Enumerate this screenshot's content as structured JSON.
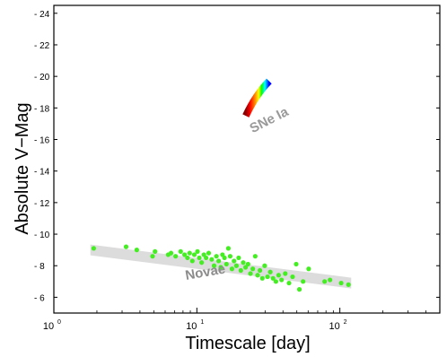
{
  "chart_data": {
    "type": "scatter",
    "title": "",
    "xlabel": "Timescale [day]",
    "ylabel": "Absolute V−Mag",
    "x_scale": "log",
    "xlim": [
      1,
      500
    ],
    "ylim": [
      5,
      24.5
    ],
    "x_ticks": [
      {
        "value": 1,
        "base": "10",
        "exp": "0"
      },
      {
        "value": 10,
        "base": "10",
        "exp": "1"
      },
      {
        "value": 100,
        "base": "10",
        "exp": "2"
      }
    ],
    "y_ticks": [
      {
        "value": 6,
        "label": "- 6"
      },
      {
        "value": 8,
        "label": "- 8"
      },
      {
        "value": 10,
        "label": "- 10"
      },
      {
        "value": 12,
        "label": "- 12"
      },
      {
        "value": 14,
        "label": "- 14"
      },
      {
        "value": 16,
        "label": "- 16"
      },
      {
        "value": 18,
        "label": "- 18"
      },
      {
        "value": 20,
        "label": "- 20"
      },
      {
        "value": 22,
        "label": "- 22"
      },
      {
        "value": 24,
        "label": "- 24"
      }
    ],
    "grid": false,
    "legend": "none",
    "regions": [
      {
        "label": "SNe Ia",
        "label_color": "#9a9a9a",
        "band_colors": [
          "#8b0000",
          "#ff0000",
          "#ff8c00",
          "#ffff00",
          "#00ff00",
          "#00ffff",
          "#0000ff"
        ],
        "x": [
          22,
          32
        ],
        "y": [
          17.5,
          19.7
        ]
      },
      {
        "label": "Novae",
        "label_color": "#8c8c8c",
        "band_color": "#dcdcdc",
        "x": [
          1.8,
          120
        ],
        "y": [
          9.0,
          6.9
        ]
      }
    ],
    "series": [
      {
        "color": "#44ee22",
        "points": [
          [
            1.9,
            9.1
          ],
          [
            3.2,
            9.2
          ],
          [
            3.8,
            9.0
          ],
          [
            4.9,
            8.6
          ],
          [
            5.1,
            8.9
          ],
          [
            6.3,
            8.7
          ],
          [
            6.6,
            8.8
          ],
          [
            7.1,
            8.6
          ],
          [
            7.7,
            8.9
          ],
          [
            8.2,
            8.7
          ],
          [
            8.6,
            8.5
          ],
          [
            8.9,
            8.8
          ],
          [
            9.3,
            8.3
          ],
          [
            9.6,
            8.7
          ],
          [
            10.1,
            8.9
          ],
          [
            10.4,
            8.5
          ],
          [
            10.8,
            8.2
          ],
          [
            11.2,
            8.7
          ],
          [
            11.6,
            8.5
          ],
          [
            12.1,
            8.8
          ],
          [
            12.7,
            8.4
          ],
          [
            13.2,
            8.0
          ],
          [
            13.7,
            8.6
          ],
          [
            14.2,
            8.3
          ],
          [
            14.7,
            7.9
          ],
          [
            15.1,
            8.7
          ],
          [
            15.6,
            8.5
          ],
          [
            16.1,
            8.1
          ],
          [
            16.6,
            9.1
          ],
          [
            17.1,
            8.6
          ],
          [
            17.6,
            7.8
          ],
          [
            18.2,
            8.3
          ],
          [
            18.9,
            8.0
          ],
          [
            19.6,
            8.5
          ],
          [
            20.3,
            7.7
          ],
          [
            21.1,
            8.2
          ],
          [
            21.9,
            7.9
          ],
          [
            22.8,
            8.1
          ],
          [
            23.7,
            7.5
          ],
          [
            24.6,
            7.8
          ],
          [
            25.6,
            8.6
          ],
          [
            26.6,
            7.4
          ],
          [
            27.6,
            7.7
          ],
          [
            28.7,
            7.2
          ],
          [
            29.8,
            8.0
          ],
          [
            31.2,
            7.3
          ],
          [
            32.6,
            7.6
          ],
          [
            34.1,
            7.2
          ],
          [
            35.7,
            7.0
          ],
          [
            37.3,
            7.4
          ],
          [
            39.1,
            7.1
          ],
          [
            41.5,
            7.5
          ],
          [
            44.1,
            6.9
          ],
          [
            46.7,
            7.3
          ],
          [
            49.5,
            8.1
          ],
          [
            52.1,
            6.5
          ],
          [
            55.3,
            7.0
          ],
          [
            60.5,
            7.8
          ],
          [
            78.2,
            7.0
          ],
          [
            85.3,
            7.1
          ],
          [
            102.1,
            6.9
          ],
          [
            114.8,
            6.8
          ]
        ]
      }
    ]
  }
}
